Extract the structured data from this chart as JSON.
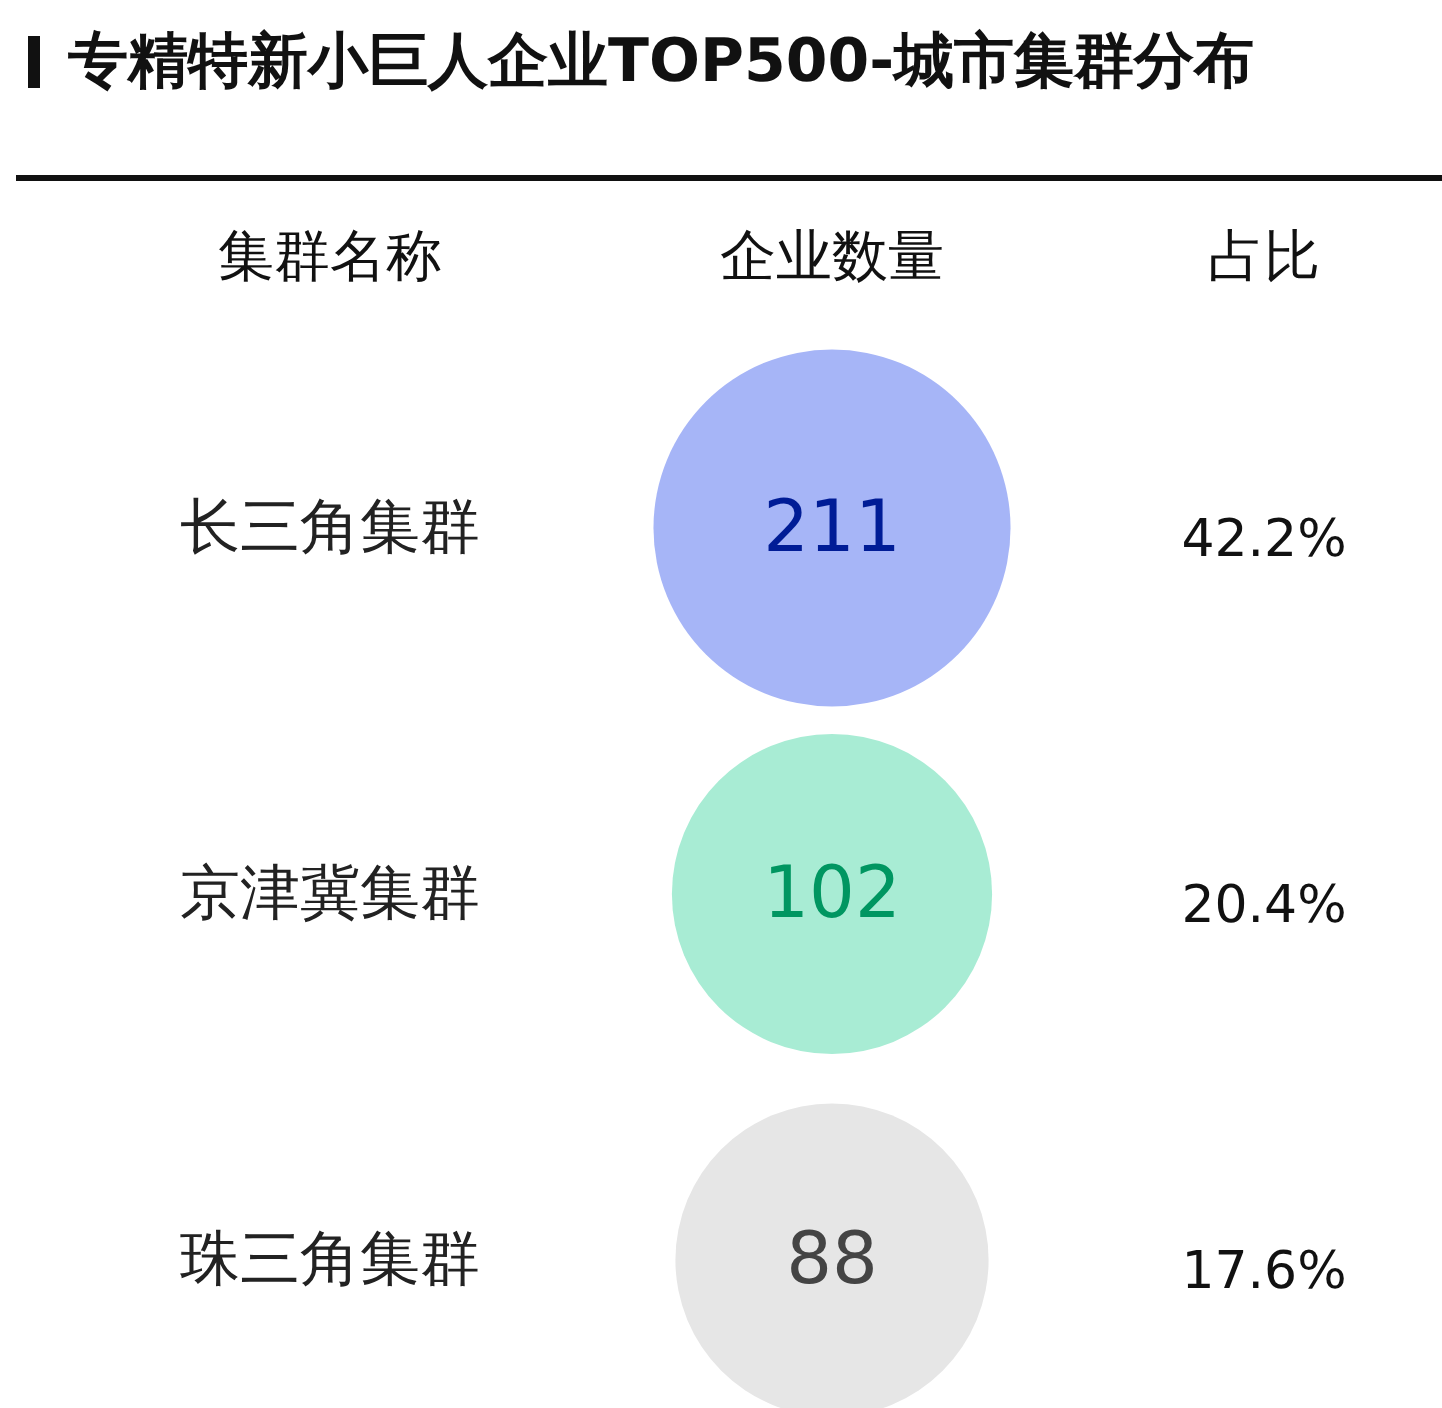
{
  "chart_data": {
    "type": "other",
    "title": "专精特新小巨人企业TOP500-城市集群分布",
    "annotations": [
      "集群名称"
    ],
    "categories": [
      "长三角集群",
      "京津冀集群",
      "珠三角集群"
    ],
    "series": [
      {
        "name": "企业数量",
        "type": "bubble",
        "colors": [
          "#a6b5f7",
          "#a8ecd4",
          "#e6e6e6"
        ],
        "values": [
          211,
          102,
          88
        ]
      },
      {
        "name": "占比",
        "values": [
          42.2,
          20.4,
          17.6
        ],
        "value_labels": [
          "42.2%",
          "20.4%",
          "17.6%"
        ]
      }
    ],
    "data_labels": true
  }
}
